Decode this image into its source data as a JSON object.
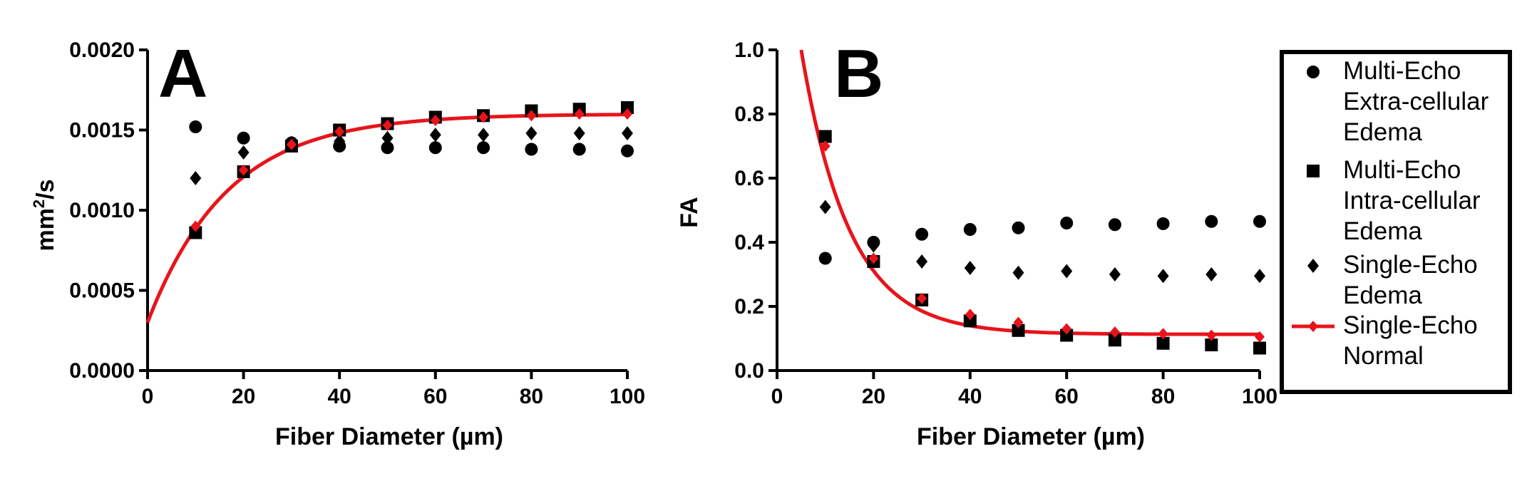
{
  "colors": {
    "fit": "#e8141b",
    "marker": "#000000"
  },
  "chart_data": [
    {
      "type": "scatter",
      "panel_label": "A",
      "xlabel": "Fiber Diameter (µm)",
      "ylabel_base": "mm",
      "ylabel_sup": "2",
      "ylabel_rest": "/s",
      "xlim": [
        0,
        100
      ],
      "ylim": [
        0,
        0.002
      ],
      "xticks": [
        "0",
        "20",
        "40",
        "60",
        "80",
        "100"
      ],
      "yticks": [
        "0.0000",
        "0.0005",
        "0.0010",
        "0.0015",
        "0.0020"
      ],
      "x": [
        10,
        20,
        30,
        40,
        50,
        60,
        70,
        80,
        90,
        100
      ],
      "series": [
        {
          "name": "Multi-Echo Extra-cellular Edema",
          "marker": "circle",
          "values": [
            0.00152,
            0.00145,
            0.00142,
            0.0014,
            0.00139,
            0.00139,
            0.00139,
            0.00138,
            0.00138,
            0.00137
          ]
        },
        {
          "name": "Multi-Echo Intra-cellular Edema",
          "marker": "square",
          "values": [
            0.00086,
            0.00124,
            0.0014,
            0.0015,
            0.00154,
            0.00158,
            0.00159,
            0.00162,
            0.00163,
            0.00164
          ]
        },
        {
          "name": "Single-Echo Edema",
          "marker": "diamond",
          "values": [
            0.0012,
            0.00136,
            0.00142,
            0.00143,
            0.00145,
            0.00147,
            0.00147,
            0.00148,
            0.00148,
            0.00148
          ]
        },
        {
          "name": "Single-Echo Normal",
          "marker": "diamond-red",
          "values": [
            0.0009,
            0.00125,
            0.00141,
            0.00149,
            0.00153,
            0.00156,
            0.00158,
            0.00159,
            0.0016,
            0.0016
          ]
        }
      ],
      "fit": {
        "model": "y = plateau - (plateau - y0) * exp(-k x)",
        "y0": 0.0003,
        "plateau": 0.0016,
        "k": 0.06,
        "x_start": 0
      }
    },
    {
      "type": "scatter",
      "panel_label": "B",
      "xlabel": "Fiber Diameter (µm)",
      "ylabel": "FA",
      "xlim": [
        0,
        100
      ],
      "ylim": [
        0,
        1.0
      ],
      "xticks": [
        "0",
        "20",
        "40",
        "60",
        "80",
        "100"
      ],
      "yticks": [
        "0.0",
        "0.2",
        "0.4",
        "0.6",
        "0.8",
        "1.0"
      ],
      "x": [
        10,
        20,
        30,
        40,
        50,
        60,
        70,
        80,
        90,
        100
      ],
      "series": [
        {
          "name": "Multi-Echo Extra-cellular Edema",
          "marker": "circle",
          "values": [
            0.35,
            0.4,
            0.425,
            0.44,
            0.445,
            0.46,
            0.455,
            0.458,
            0.465,
            0.465
          ]
        },
        {
          "name": "Multi-Echo Intra-cellular Edema",
          "marker": "square",
          "values": [
            0.73,
            0.34,
            0.22,
            0.155,
            0.125,
            0.11,
            0.095,
            0.085,
            0.08,
            0.07
          ]
        },
        {
          "name": "Single-Echo Edema",
          "marker": "diamond",
          "values": [
            0.51,
            0.39,
            0.34,
            0.32,
            0.305,
            0.31,
            0.3,
            0.295,
            0.3,
            0.295
          ]
        },
        {
          "name": "Single-Echo Normal",
          "marker": "diamond-red",
          "values": [
            0.7,
            0.35,
            0.225,
            0.175,
            0.15,
            0.13,
            0.12,
            0.115,
            0.11,
            0.105
          ]
        }
      ],
      "fit": {
        "model": "y = plateau + (y0 - plateau) * exp(-k (x - x0))",
        "y0": 1.0,
        "x0": 5,
        "plateau": 0.113,
        "k": 0.1,
        "x_start": 5
      }
    }
  ],
  "legend": {
    "entries": [
      {
        "marker": "circle",
        "lines": [
          "Multi-Echo",
          "Extra-cellular",
          "Edema"
        ]
      },
      {
        "marker": "square",
        "lines": [
          "Multi-Echo",
          "Intra-cellular",
          "Edema"
        ]
      },
      {
        "marker": "diamond",
        "lines": [
          "Single-Echo",
          "Edema"
        ]
      },
      {
        "marker": "line-diamond-red",
        "lines": [
          "Single-Echo",
          "Normal"
        ]
      }
    ]
  }
}
